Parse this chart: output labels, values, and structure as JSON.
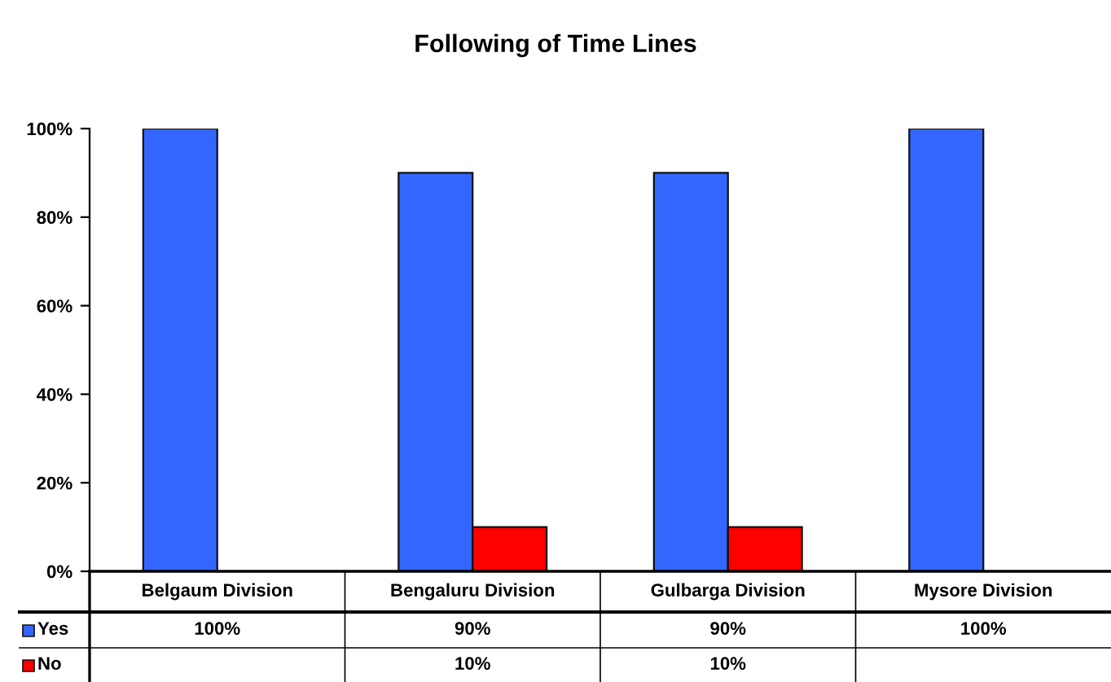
{
  "chart_data": {
    "type": "bar",
    "title": "Following of Time Lines",
    "categories": [
      "Belgaum Division",
      "Bengaluru Division",
      "Gulbarga Division",
      "Mysore Division"
    ],
    "series": [
      {
        "name": "Yes",
        "color": "#3366ff",
        "values": [
          100,
          90,
          90,
          100
        ],
        "value_labels": [
          "100%",
          "90%",
          "90%",
          "100%"
        ]
      },
      {
        "name": "No",
        "color": "#ff0000",
        "values": [
          null,
          10,
          10,
          null
        ],
        "value_labels": [
          null,
          "10%",
          "10%",
          null
        ]
      }
    ],
    "ylim": [
      0,
      100
    ],
    "yticks": [
      {
        "value": 0,
        "label": "0%"
      },
      {
        "value": 20,
        "label": "20%"
      },
      {
        "value": 40,
        "label": "40%"
      },
      {
        "value": 60,
        "label": "60%"
      },
      {
        "value": 80,
        "label": "80%"
      },
      {
        "value": 100,
        "label": "100%"
      }
    ],
    "grid": false,
    "legend": "bottom"
  }
}
